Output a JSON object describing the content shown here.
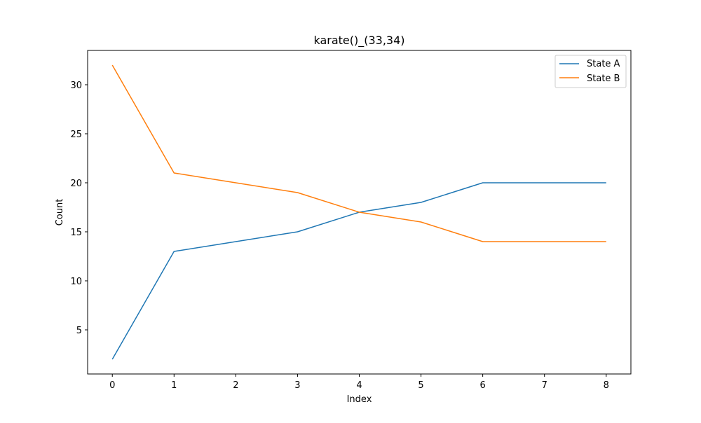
{
  "chart_data": {
    "type": "line",
    "title": "karate()_(33,34)",
    "xlabel": "Index",
    "ylabel": "Count",
    "x": [
      0,
      1,
      2,
      3,
      4,
      5,
      6,
      7,
      8
    ],
    "xlim": [
      -0.4,
      8.4
    ],
    "ylim": [
      0.5,
      33.5
    ],
    "xticks": [
      0,
      1,
      2,
      3,
      4,
      5,
      6,
      7,
      8
    ],
    "yticks": [
      5,
      10,
      15,
      20,
      25,
      30
    ],
    "grid": false,
    "legend_position": "top-right",
    "series": [
      {
        "name": "State A",
        "color": "#1f77b4",
        "values": [
          2,
          13,
          14,
          15,
          17,
          18,
          20,
          20,
          20
        ]
      },
      {
        "name": "State B",
        "color": "#ff7f0e",
        "values": [
          32,
          21,
          20,
          19,
          17,
          16,
          14,
          14,
          14
        ]
      }
    ]
  }
}
